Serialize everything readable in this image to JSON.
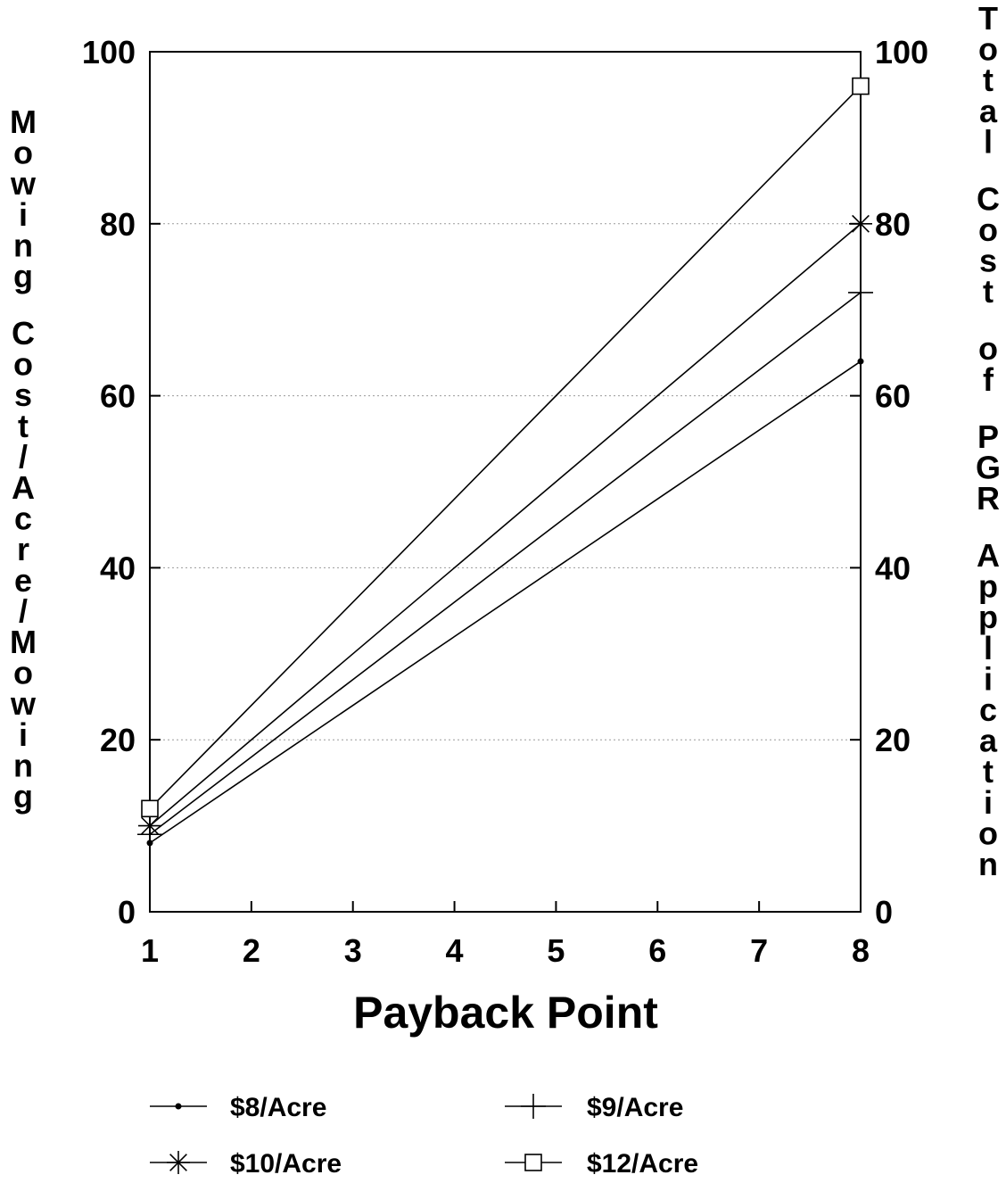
{
  "chart_data": {
    "type": "line",
    "xlabel": "Payback Point",
    "ylabel": "Mowing Cost/Acre/Mowing",
    "y2label": "Total Cost of PGR Application",
    "xlim": [
      1,
      8
    ],
    "ylim": [
      0,
      100
    ],
    "y2lim": [
      0,
      100
    ],
    "x_ticks": [
      "1",
      "2",
      "3",
      "4",
      "5",
      "6",
      "7",
      "8"
    ],
    "y_ticks": [
      "0",
      "20",
      "40",
      "60",
      "80",
      "100"
    ],
    "y2_ticks": [
      "0",
      "20",
      "40",
      "60",
      "80",
      "100"
    ],
    "grid": "dotted horizontal",
    "legend_position": "bottom",
    "x": [
      1,
      8
    ],
    "series": [
      {
        "name": "$8/Acre",
        "marker": "dot",
        "values": [
          8,
          64
        ]
      },
      {
        "name": "$9/Acre",
        "marker": "plus",
        "values": [
          9,
          72
        ]
      },
      {
        "name": "$10/Acre",
        "marker": "asterisk",
        "values": [
          10,
          80
        ]
      },
      {
        "name": "$12/Acre",
        "marker": "square",
        "values": [
          12,
          96
        ]
      }
    ]
  }
}
